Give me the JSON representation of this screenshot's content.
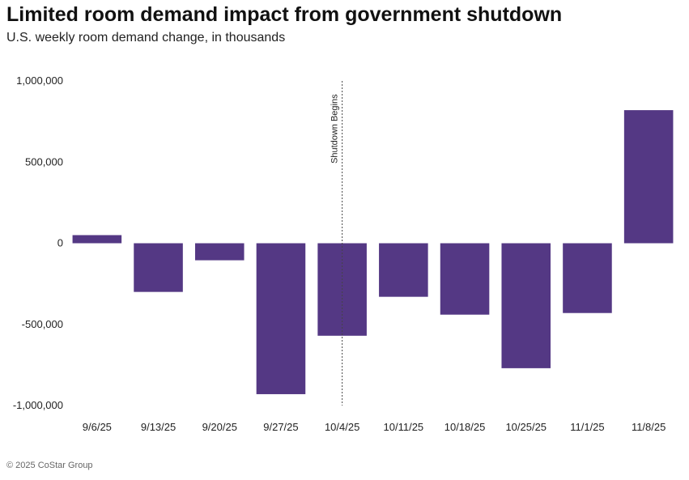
{
  "header": {
    "title": "Limited room demand impact from government shutdown",
    "subtitle": "U.S. weekly room demand change, in thousands"
  },
  "footer": {
    "text": "© 2025 CoStar Group"
  },
  "colors": {
    "bar": "#543884",
    "axis_line": "#444444"
  },
  "chart_data": {
    "type": "bar",
    "title": "Limited room demand impact from government shutdown",
    "subtitle": "U.S. weekly room demand change, in thousands",
    "xlabel": "",
    "ylabel": "",
    "categories": [
      "9/6/25",
      "9/13/25",
      "9/20/25",
      "9/27/25",
      "10/4/25",
      "10/11/25",
      "10/18/25",
      "10/25/25",
      "11/1/25",
      "11/8/25"
    ],
    "values": [
      50000,
      -300000,
      -105000,
      -930000,
      -570000,
      -330000,
      -440000,
      -770000,
      -430000,
      820000
    ],
    "ylim": [
      -1000000,
      1000000
    ],
    "yticks": [
      1000000,
      500000,
      0,
      -500000,
      -1000000
    ],
    "ytick_labels": [
      "1,000,000",
      "500,000",
      "0",
      "-500,000",
      "-1,000,000"
    ],
    "grid": false,
    "annotations": [
      {
        "text": "Shutdown Begins",
        "category": "10/4/25",
        "style": "dotted-vertical-line"
      }
    ]
  }
}
